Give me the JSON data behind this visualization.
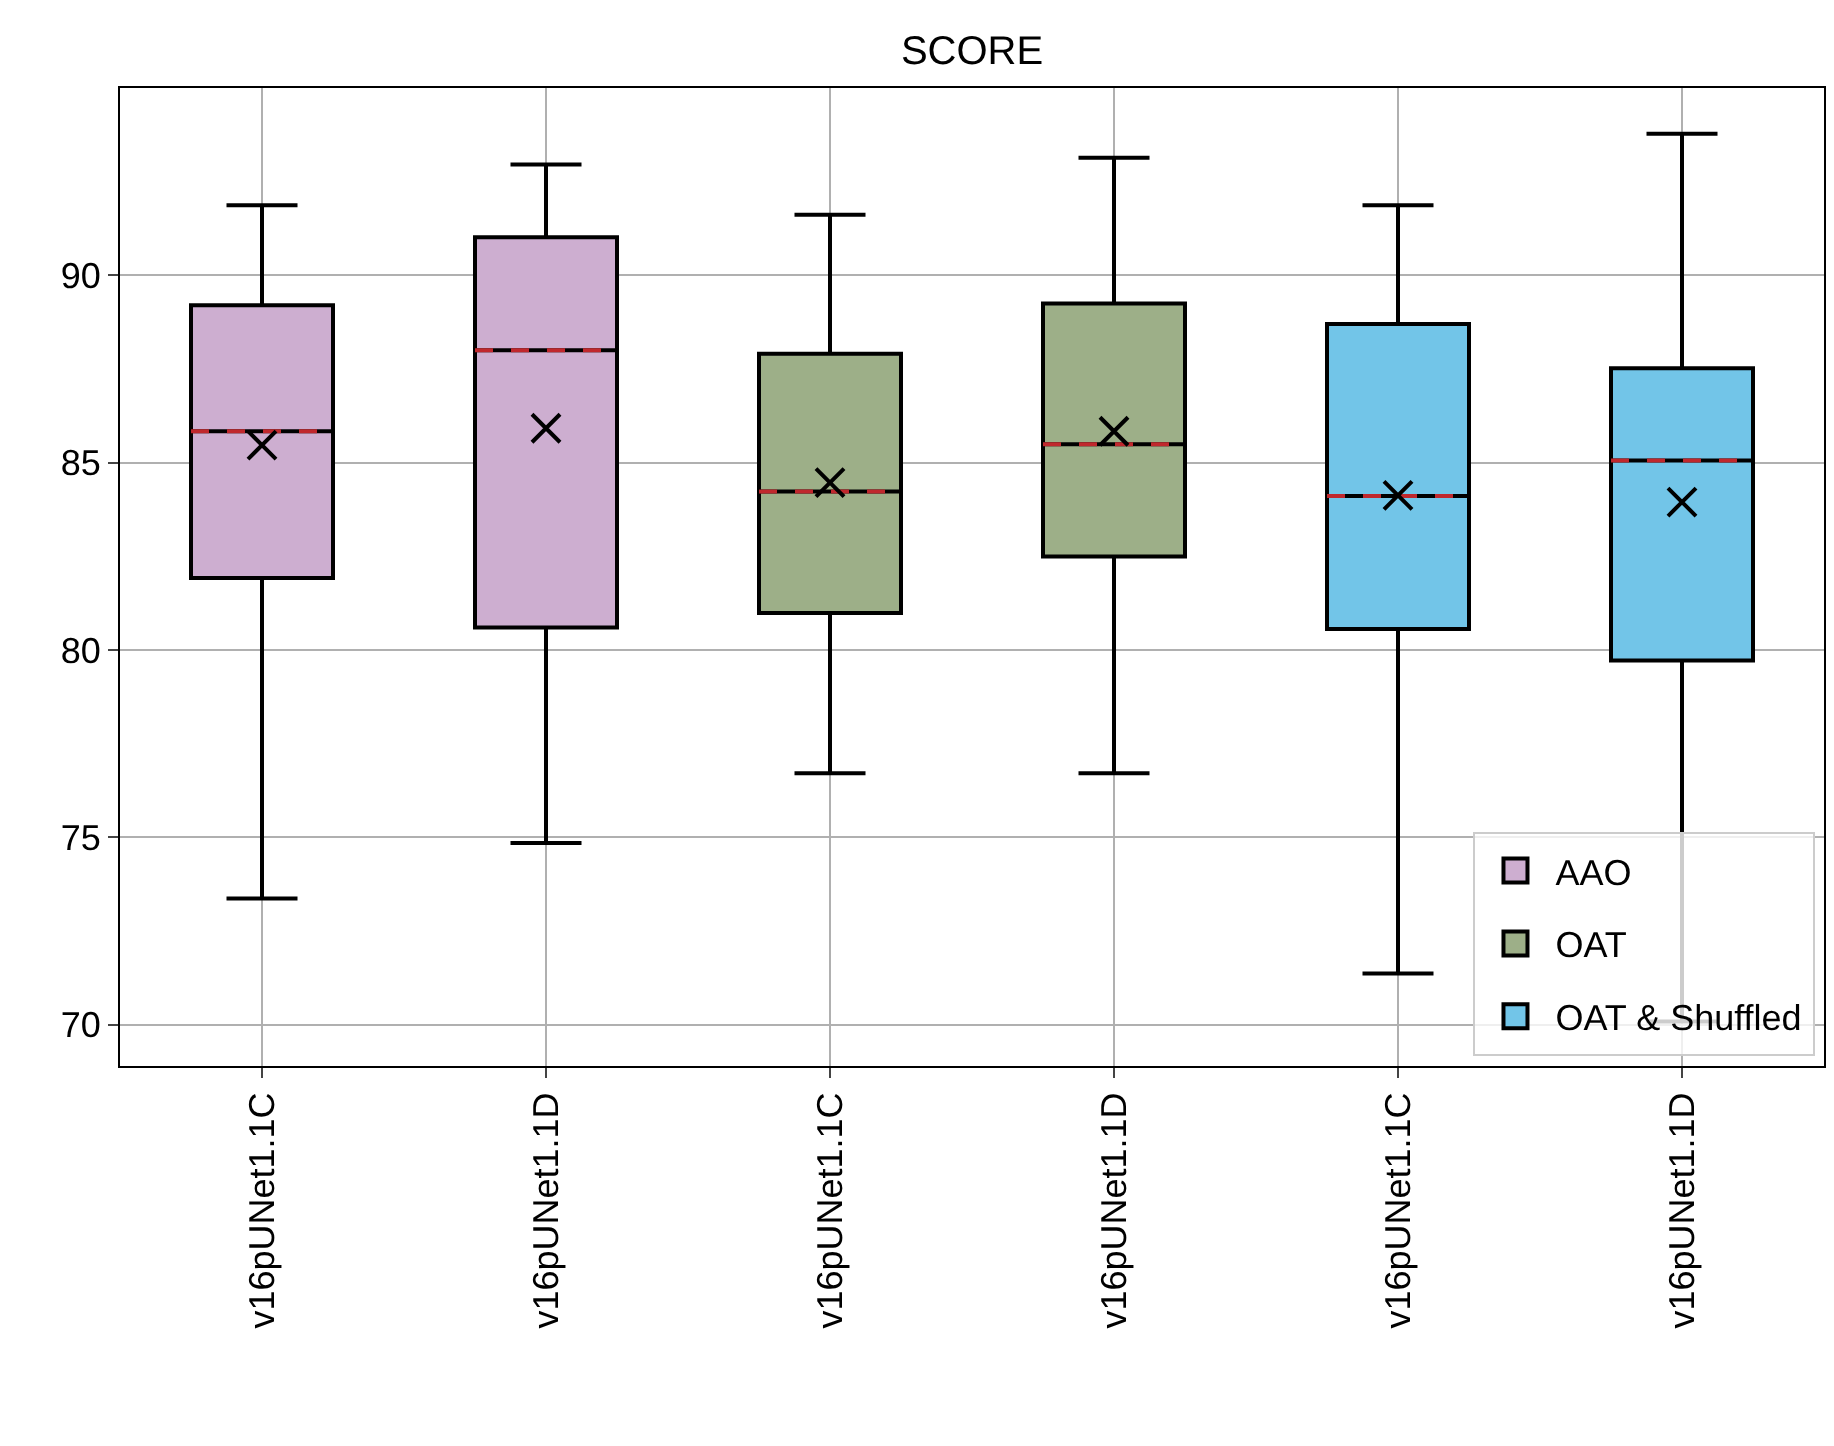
{
  "chart_data": {
    "type": "box",
    "title": "SCORE",
    "categories": [
      "v16pUNet1.1C",
      "v16pUNet1.1D",
      "v16pUNet1.1C",
      "v16pUNet1.1D",
      "v16pUNet1.1C",
      "v16pUNet1.1D"
    ],
    "series": [
      {
        "name": "AAO",
        "color": "#cdaed0",
        "boxes": [
          {
            "low": 73.37,
            "q1": 81.92,
            "median": 85.84,
            "q3": 89.2,
            "high": 91.87,
            "mean": 85.47
          },
          {
            "low": 74.85,
            "q1": 80.6,
            "median": 88.0,
            "q3": 91.02,
            "high": 92.96,
            "mean": 85.92
          },
          null,
          null,
          null,
          null
        ]
      },
      {
        "name": "OAT",
        "color": "#9daf88",
        "boxes": [
          null,
          null,
          {
            "low": 76.71,
            "q1": 80.99,
            "median": 84.23,
            "q3": 87.91,
            "high": 91.62,
            "mean": 84.47
          },
          {
            "low": 76.71,
            "q1": 82.5,
            "median": 85.49,
            "q3": 89.25,
            "high": 93.14,
            "mean": 85.84
          },
          null,
          null
        ]
      },
      {
        "name": "OAT & Shuffled",
        "color": "#72c5e8",
        "boxes": [
          null,
          null,
          null,
          null,
          {
            "low": 71.37,
            "q1": 80.56,
            "median": 84.11,
            "q3": 88.7,
            "high": 91.87,
            "mean": 84.13
          },
          {
            "low": 70.09,
            "q1": 79.72,
            "median": 85.06,
            "q3": 87.52,
            "high": 93.78,
            "mean": 83.95
          }
        ]
      }
    ],
    "ylim": [
      68.9,
      95.0
    ],
    "yticks": [
      70,
      75,
      80,
      85,
      90
    ],
    "grid": true,
    "legend": "bottom right",
    "marker": "cross"
  }
}
